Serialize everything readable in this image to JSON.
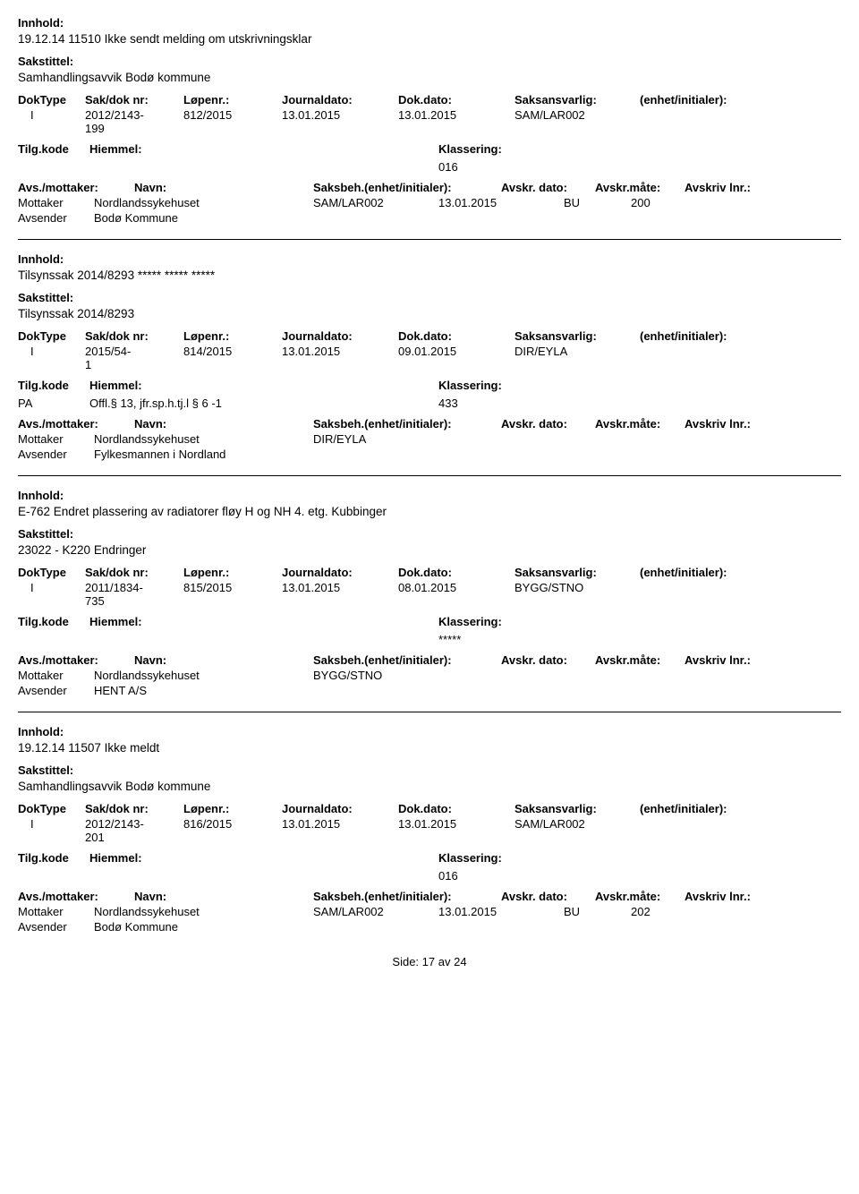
{
  "labels": {
    "innhold": "Innhold:",
    "sakstittel": "Sakstittel:",
    "doktype": "DokType",
    "sakdok": "Sak/dok nr:",
    "lopenr": "Løpenr.:",
    "journaldato": "Journaldato:",
    "dokdato": "Dok.dato:",
    "saksansvarlig": "Saksansvarlig:",
    "enhet": "(enhet/initialer):",
    "tilgkode": "Tilg.kode",
    "hjemmel": "Hiemmel:",
    "klassering": "Klassering:",
    "avs_mottaker": "Avs./mottaker:",
    "navn": "Navn:",
    "saksbeh_ei": "Saksbeh.(enhet/initialer):",
    "avskr_dato": "Avskr. dato:",
    "avskr_mate": "Avskr.måte:",
    "avskriv_lnr": "Avskriv lnr.:",
    "mottaker": "Mottaker",
    "avsender": "Avsender",
    "side": "Side:",
    "side_num": "17",
    "side_av": "av",
    "side_total": "24"
  },
  "records": [
    {
      "innhold": "19.12.14 11510 Ikke sendt melding om utskrivningsklar",
      "sakstittel": "Samhandlingsavvik Bodø kommune",
      "doktype": "I",
      "sakdok": "2012/2143-199",
      "lopenr": "812/2015",
      "jd": "13.01.2015",
      "dd": "13.01.2015",
      "saksansv": "SAM/LAR002",
      "tilg": "",
      "hjemmel": "",
      "klass": "016",
      "parties": [
        {
          "role": "Mottaker",
          "name": "Nordlandssykehuset",
          "sb": "SAM/LAR002",
          "ad": "13.01.2015",
          "am": "BU",
          "al": "200"
        },
        {
          "role": "Avsender",
          "name": "Bodø Kommune",
          "sb": "",
          "ad": "",
          "am": "",
          "al": ""
        }
      ]
    },
    {
      "innhold": "Tilsynssak 2014/8293 ***** ***** *****",
      "sakstittel": "Tilsynssak 2014/8293",
      "doktype": "I",
      "sakdok": "2015/54-1",
      "lopenr": "814/2015",
      "jd": "13.01.2015",
      "dd": "09.01.2015",
      "saksansv": "DIR/EYLA",
      "tilg": "PA",
      "hjemmel": "Offl.§ 13, jfr.sp.h.tj.l § 6 -1",
      "klass": "433",
      "parties": [
        {
          "role": "Mottaker",
          "name": "Nordlandssykehuset",
          "sb": "DIR/EYLA",
          "ad": "",
          "am": "",
          "al": ""
        },
        {
          "role": "Avsender",
          "name": "Fylkesmannen i Nordland",
          "sb": "",
          "ad": "",
          "am": "",
          "al": ""
        }
      ]
    },
    {
      "innhold": "E-762 Endret plassering av radiatorer fløy H og NH 4. etg. Kubbinger",
      "sakstittel": "23022 - K220 Endringer",
      "doktype": "I",
      "sakdok": "2011/1834-735",
      "lopenr": "815/2015",
      "jd": "13.01.2015",
      "dd": "08.01.2015",
      "saksansv": "BYGG/STNO",
      "tilg": "",
      "hjemmel": "",
      "klass": "*****",
      "parties": [
        {
          "role": "Mottaker",
          "name": "Nordlandssykehuset",
          "sb": "BYGG/STNO",
          "ad": "",
          "am": "",
          "al": ""
        },
        {
          "role": "Avsender",
          "name": "HENT A/S",
          "sb": "",
          "ad": "",
          "am": "",
          "al": ""
        }
      ]
    },
    {
      "innhold": "19.12.14  11507 Ikke meldt",
      "sakstittel": "Samhandlingsavvik Bodø kommune",
      "doktype": "I",
      "sakdok": "2012/2143-201",
      "lopenr": "816/2015",
      "jd": "13.01.2015",
      "dd": "13.01.2015",
      "saksansv": "SAM/LAR002",
      "tilg": "",
      "hjemmel": "",
      "klass": "016",
      "parties": [
        {
          "role": "Mottaker",
          "name": "Nordlandssykehuset",
          "sb": "SAM/LAR002",
          "ad": "13.01.2015",
          "am": "BU",
          "al": "202"
        },
        {
          "role": "Avsender",
          "name": "Bodø Kommune",
          "sb": "",
          "ad": "",
          "am": "",
          "al": ""
        }
      ]
    }
  ]
}
